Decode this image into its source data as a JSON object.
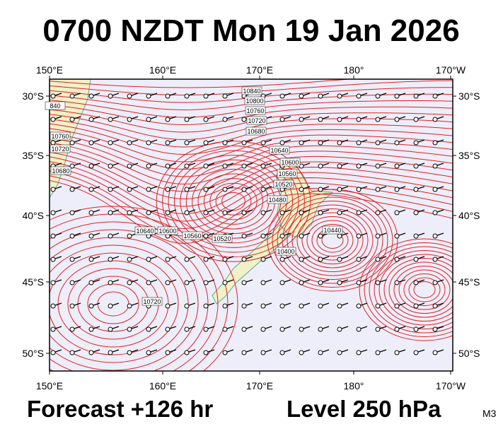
{
  "header": {
    "title": "0700 NZDT Mon 19 Jan 2026"
  },
  "map": {
    "lon_labels": [
      "150°E",
      "160°E",
      "170°E",
      "180°",
      "170°W"
    ],
    "lat_labels": [
      "30°S",
      "35°S",
      "40°S",
      "45°S",
      "50°S"
    ],
    "contour_labels": [
      "10840",
      "10800",
      "10760",
      "10720",
      "10680",
      "10640",
      "10600",
      "10560",
      "10520",
      "10480",
      "10440",
      "10400",
      "10760",
      "10720",
      "10680",
      "10640",
      "10600",
      "10560",
      "10520",
      "10720",
      "840"
    ]
  },
  "footer": {
    "forecast": "Forecast +126 hr",
    "level": "Level 250 hPa",
    "model": "M3"
  }
}
